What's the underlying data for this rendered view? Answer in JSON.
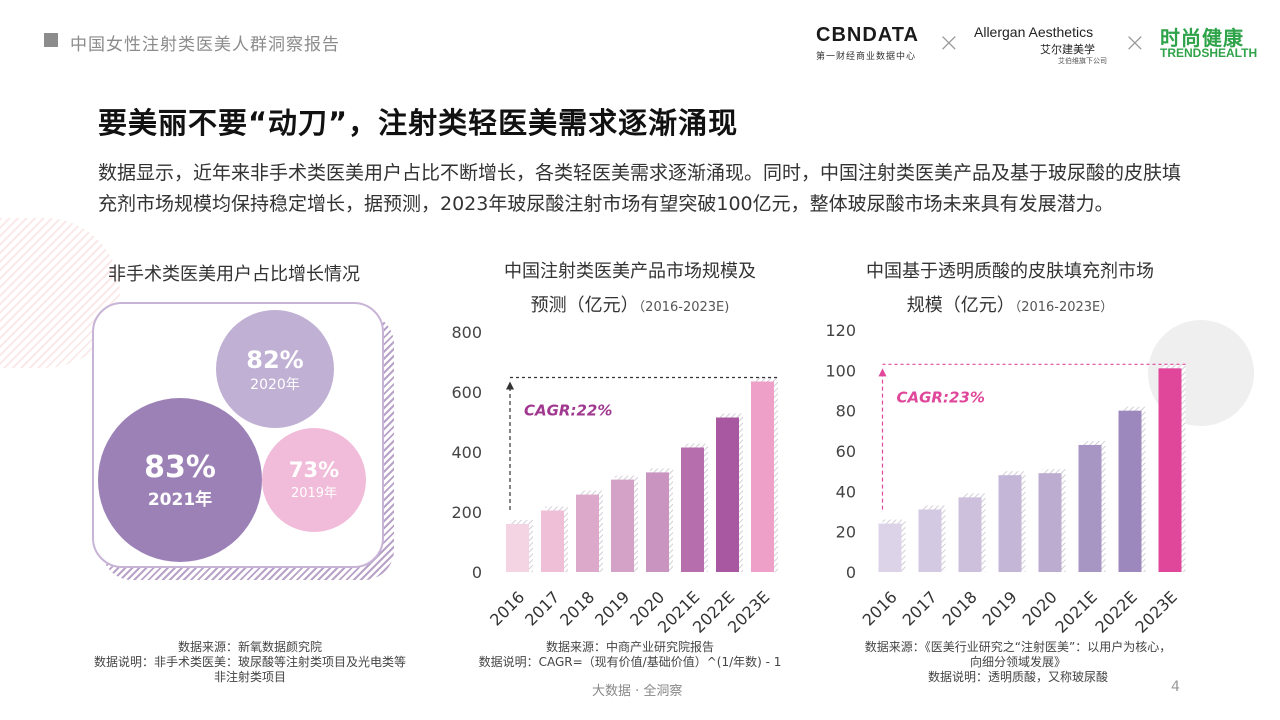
{
  "header": {
    "report_title": "中国女性注射类医美人群洞察报告",
    "logos": {
      "cbn_main": "CBNDATA",
      "cbn_sub": "第一财经商业数据中心",
      "allergan_main": "Allergan Aesthetics",
      "allergan_sub": "艾尔建美学",
      "allergan_sub2": "艾伯维旗下公司",
      "trends_main": "时尚健康",
      "trends_sub": "TRENDSHEALTH",
      "separator": "×"
    }
  },
  "main": {
    "title": "要美丽不要“动刀”，注射类轻医美需求逐渐涌现",
    "description": "数据显示，近年来非手术类医美用户占比不断增长，各类轻医美需求逐渐涌现。同时，中国注射类医美产品及基于玻尿酸的皮肤填充剂市场规模均保持稳定增长，据预测，2023年玻尿酸注射市场有望突破100亿元，整体玻尿酸市场未来具有发展潜力。"
  },
  "bubbles": {
    "title": "非手术类医美用户占比增长情况",
    "items": [
      {
        "pct": "83%",
        "year": "2021年",
        "value": 83,
        "color": "#9b81b6"
      },
      {
        "pct": "82%",
        "year": "2020年",
        "value": 82,
        "color": "#c0b0d4"
      },
      {
        "pct": "73%",
        "year": "2019年",
        "value": 73,
        "color": "#f1bcd9"
      }
    ],
    "source": "数据来源：新氧数据颜究院",
    "note": "数据说明：非手术类医美：玻尿酸等注射类项目及光电类等",
    "note2": "非注射类项目"
  },
  "chart_data": [
    {
      "type": "bar",
      "title": "中国注射类医美产品市场规模及",
      "title2": "预测（亿元）",
      "title_suffix": "（2016-2023E)",
      "categories": [
        "2016",
        "2017",
        "2018",
        "2019",
        "2020",
        "2021E",
        "2022E",
        "2023E"
      ],
      "values": [
        160,
        205,
        258,
        308,
        332,
        415,
        515,
        635
      ],
      "ylim": [
        0,
        800
      ],
      "yticks": [
        "0",
        "200",
        "400",
        "600",
        "800"
      ],
      "annotation": "CAGR:22%",
      "colors": [
        "#f4d3e3",
        "#eebfd7",
        "#dca9ca",
        "#d4a1c7",
        "#c994c0",
        "#b76eac",
        "#a858a0",
        "#eea0c8"
      ],
      "annotation_color": "#a03890",
      "source": "数据来源：中商产业研究院报告",
      "note": "数据说明：CAGR=（现有价值/基础价值）^(1/年数) - 1"
    },
    {
      "type": "bar",
      "title": "中国基于透明质酸的皮肤填充剂市场",
      "title2": "规模（亿元）",
      "title_suffix": "（2016-2023E）",
      "categories": [
        "2016",
        "2017",
        "2018",
        "2019",
        "2020",
        "2021E",
        "2022E",
        "2023E"
      ],
      "values": [
        24,
        31,
        37,
        48,
        49,
        63,
        80,
        101
      ],
      "ylim": [
        0,
        120
      ],
      "yticks": [
        "0",
        "20",
        "40",
        "60",
        "80",
        "100",
        "120"
      ],
      "annotation": "CAGR:23%",
      "colors": [
        "#dcd3e8",
        "#d4c9e2",
        "#ccc0dc",
        "#c3b6d6",
        "#bbacd0",
        "#a796c4",
        "#9c88bd",
        "#e0479a"
      ],
      "annotation_color": "#e0479a",
      "source": "数据来源：《医美行业研究之“注射医美”：以用户为核心，",
      "source2": "向细分领域发展》",
      "note": "数据说明：透明质酸，又称玻尿酸"
    }
  ],
  "footer": {
    "text": "大数据 · 全洞察",
    "page": "4"
  }
}
